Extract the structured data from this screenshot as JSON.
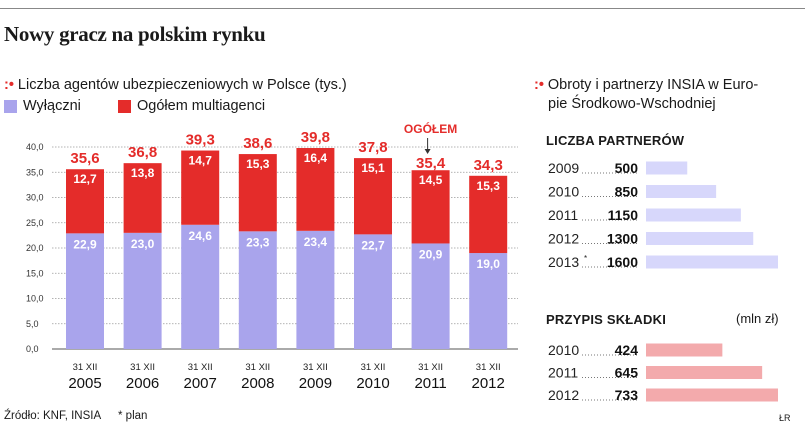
{
  "title": "Nowy gracz na polskim rynku",
  "left_panel": {
    "marker": ":•",
    "title": "Liczba agentów ubezpieczeniowych w Polsce (tys.)",
    "annotation": "OGÓŁEM"
  },
  "right_panel": {
    "marker": ":•",
    "title_line1": "Obroty i partnerzy INSIA w Euro-",
    "title_line2": "pie Środkowo-Wschodniej",
    "partners_heading": "LICZBA PARTNERÓW",
    "premium_heading": "PRZYPIS SKŁADKI",
    "premium_unit": "(mln zł)"
  },
  "footer": {
    "source": "Źródło: KNF,  INSIA",
    "note": "* plan",
    "credit": "ŁR"
  },
  "colors": {
    "exclusive": "#a9a4ec",
    "multi": "#e42c2a",
    "total_text": "#e42c2a",
    "partners_bar": "#d7d7fb",
    "premium_bar": "#f3aaac"
  },
  "chart_data": [
    {
      "type": "bar",
      "stacked": true,
      "categories": [
        "31 XII 2005",
        "31 XII 2006",
        "31 XII 2007",
        "31 XII 2008",
        "31 XII 2009",
        "31 XII 2010",
        "31 XII 2011",
        "31 XII 2012"
      ],
      "category_line1": [
        "31 XII",
        "31 XII",
        "31 XII",
        "31 XII",
        "31 XII",
        "31 XII",
        "31 XII",
        "31 XII"
      ],
      "category_line2": [
        "2005",
        "2006",
        "2007",
        "2008",
        "2009",
        "2010",
        "2011",
        "2012"
      ],
      "series": [
        {
          "name": "Wyłączni",
          "values": [
            22.9,
            23.0,
            24.6,
            23.3,
            23.4,
            22.7,
            20.9,
            19.0
          ]
        },
        {
          "name": "Ogółem multiagenci",
          "values": [
            12.7,
            13.8,
            14.7,
            15.3,
            16.4,
            15.1,
            14.5,
            15.3
          ]
        }
      ],
      "value_labels": [
        [
          "22,9",
          "23,0",
          "24,6",
          "23,3",
          "23,4",
          "22,7",
          "20,9",
          "19,0"
        ],
        [
          "12,7",
          "13,8",
          "14,7",
          "15,3",
          "16,4",
          "15,1",
          "14,5",
          "15,3"
        ]
      ],
      "totals": [
        35.6,
        36.8,
        39.3,
        38.6,
        39.8,
        37.8,
        35.4,
        34.3
      ],
      "total_labels": [
        "35,6",
        "36,8",
        "39,3",
        "38,6",
        "39,8",
        "37,8",
        "35,4",
        "34,3"
      ],
      "ylim": [
        0,
        40
      ],
      "yticks": [
        0,
        5,
        10,
        15,
        20,
        25,
        30,
        35,
        40
      ],
      "ytick_labels": [
        "0,0",
        "5,0",
        "10,0",
        "15,0",
        "20,0",
        "25,0",
        "30,0",
        "35,0",
        "40,0"
      ],
      "grid": true
    },
    {
      "type": "bar",
      "orientation": "horizontal",
      "title": "LICZBA PARTNERÓW",
      "categories": [
        "2009",
        "2010",
        "2011",
        "2012",
        "2013*"
      ],
      "label_year": [
        "2009",
        "2010",
        "2011",
        "2012",
        "2013"
      ],
      "label_suffix": [
        "",
        "",
        "",
        "",
        "*"
      ],
      "values": [
        500,
        850,
        1150,
        1300,
        1600
      ],
      "value_labels": [
        "500",
        "850",
        "1150",
        "1300",
        "1600"
      ],
      "xlim": [
        0,
        1600
      ]
    },
    {
      "type": "bar",
      "orientation": "horizontal",
      "title": "PRZYPIS SKŁADKI",
      "unit": "mln zł",
      "categories": [
        "2010",
        "2011",
        "2012"
      ],
      "values": [
        424,
        645,
        733
      ],
      "value_labels": [
        "424",
        "645",
        "733"
      ],
      "xlim": [
        0,
        733
      ]
    }
  ]
}
